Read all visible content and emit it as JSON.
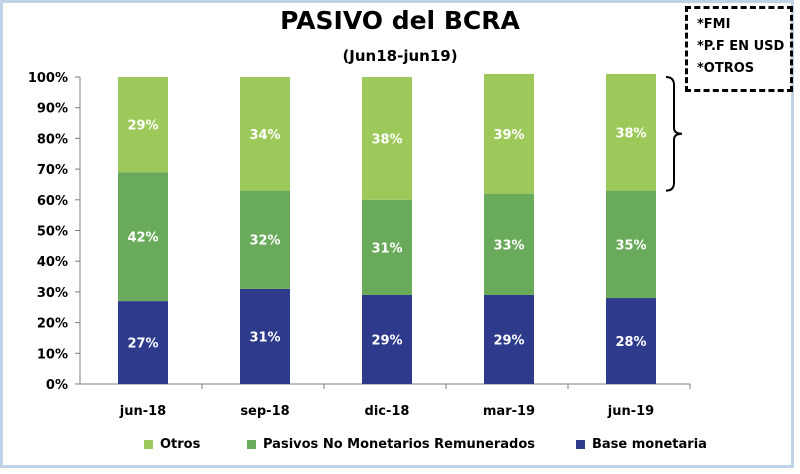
{
  "chart_data": {
    "type": "bar",
    "stacked": true,
    "title": "PASIVO del BCRA",
    "subtitle": "(Jun18-jun19)",
    "categories": [
      "jun-18",
      "sep-18",
      "dic-18",
      "mar-19",
      "jun-19"
    ],
    "series": [
      {
        "name": "Base monetaria",
        "values": [
          27,
          31,
          29,
          29,
          28
        ],
        "labels": [
          "27%",
          "31%",
          "29%",
          "29%",
          "28%"
        ],
        "color": "#2e3a8c"
      },
      {
        "name": "Pasivos No Monetarios Remunerados",
        "values": [
          42,
          32,
          31,
          33,
          35
        ],
        "labels": [
          "42%",
          "32%",
          "31%",
          "33%",
          "35%"
        ],
        "color": "#6aab5b"
      },
      {
        "name": "Otros",
        "values": [
          29,
          34,
          38,
          39,
          38
        ],
        "labels": [
          "29%",
          "34%",
          "38%",
          "39%",
          "38%"
        ],
        "color": "#9dc85a"
      }
    ],
    "ylim": [
      0,
      100
    ],
    "yticks": [
      "0%",
      "10%",
      "20%",
      "30%",
      "40%",
      "50%",
      "60%",
      "70%",
      "80%",
      "90%",
      "100%"
    ],
    "legend_placement": "bottom",
    "grid": false
  },
  "note": {
    "lines": [
      "*FMI",
      "*P.F EN USD",
      "*OTROS"
    ]
  }
}
